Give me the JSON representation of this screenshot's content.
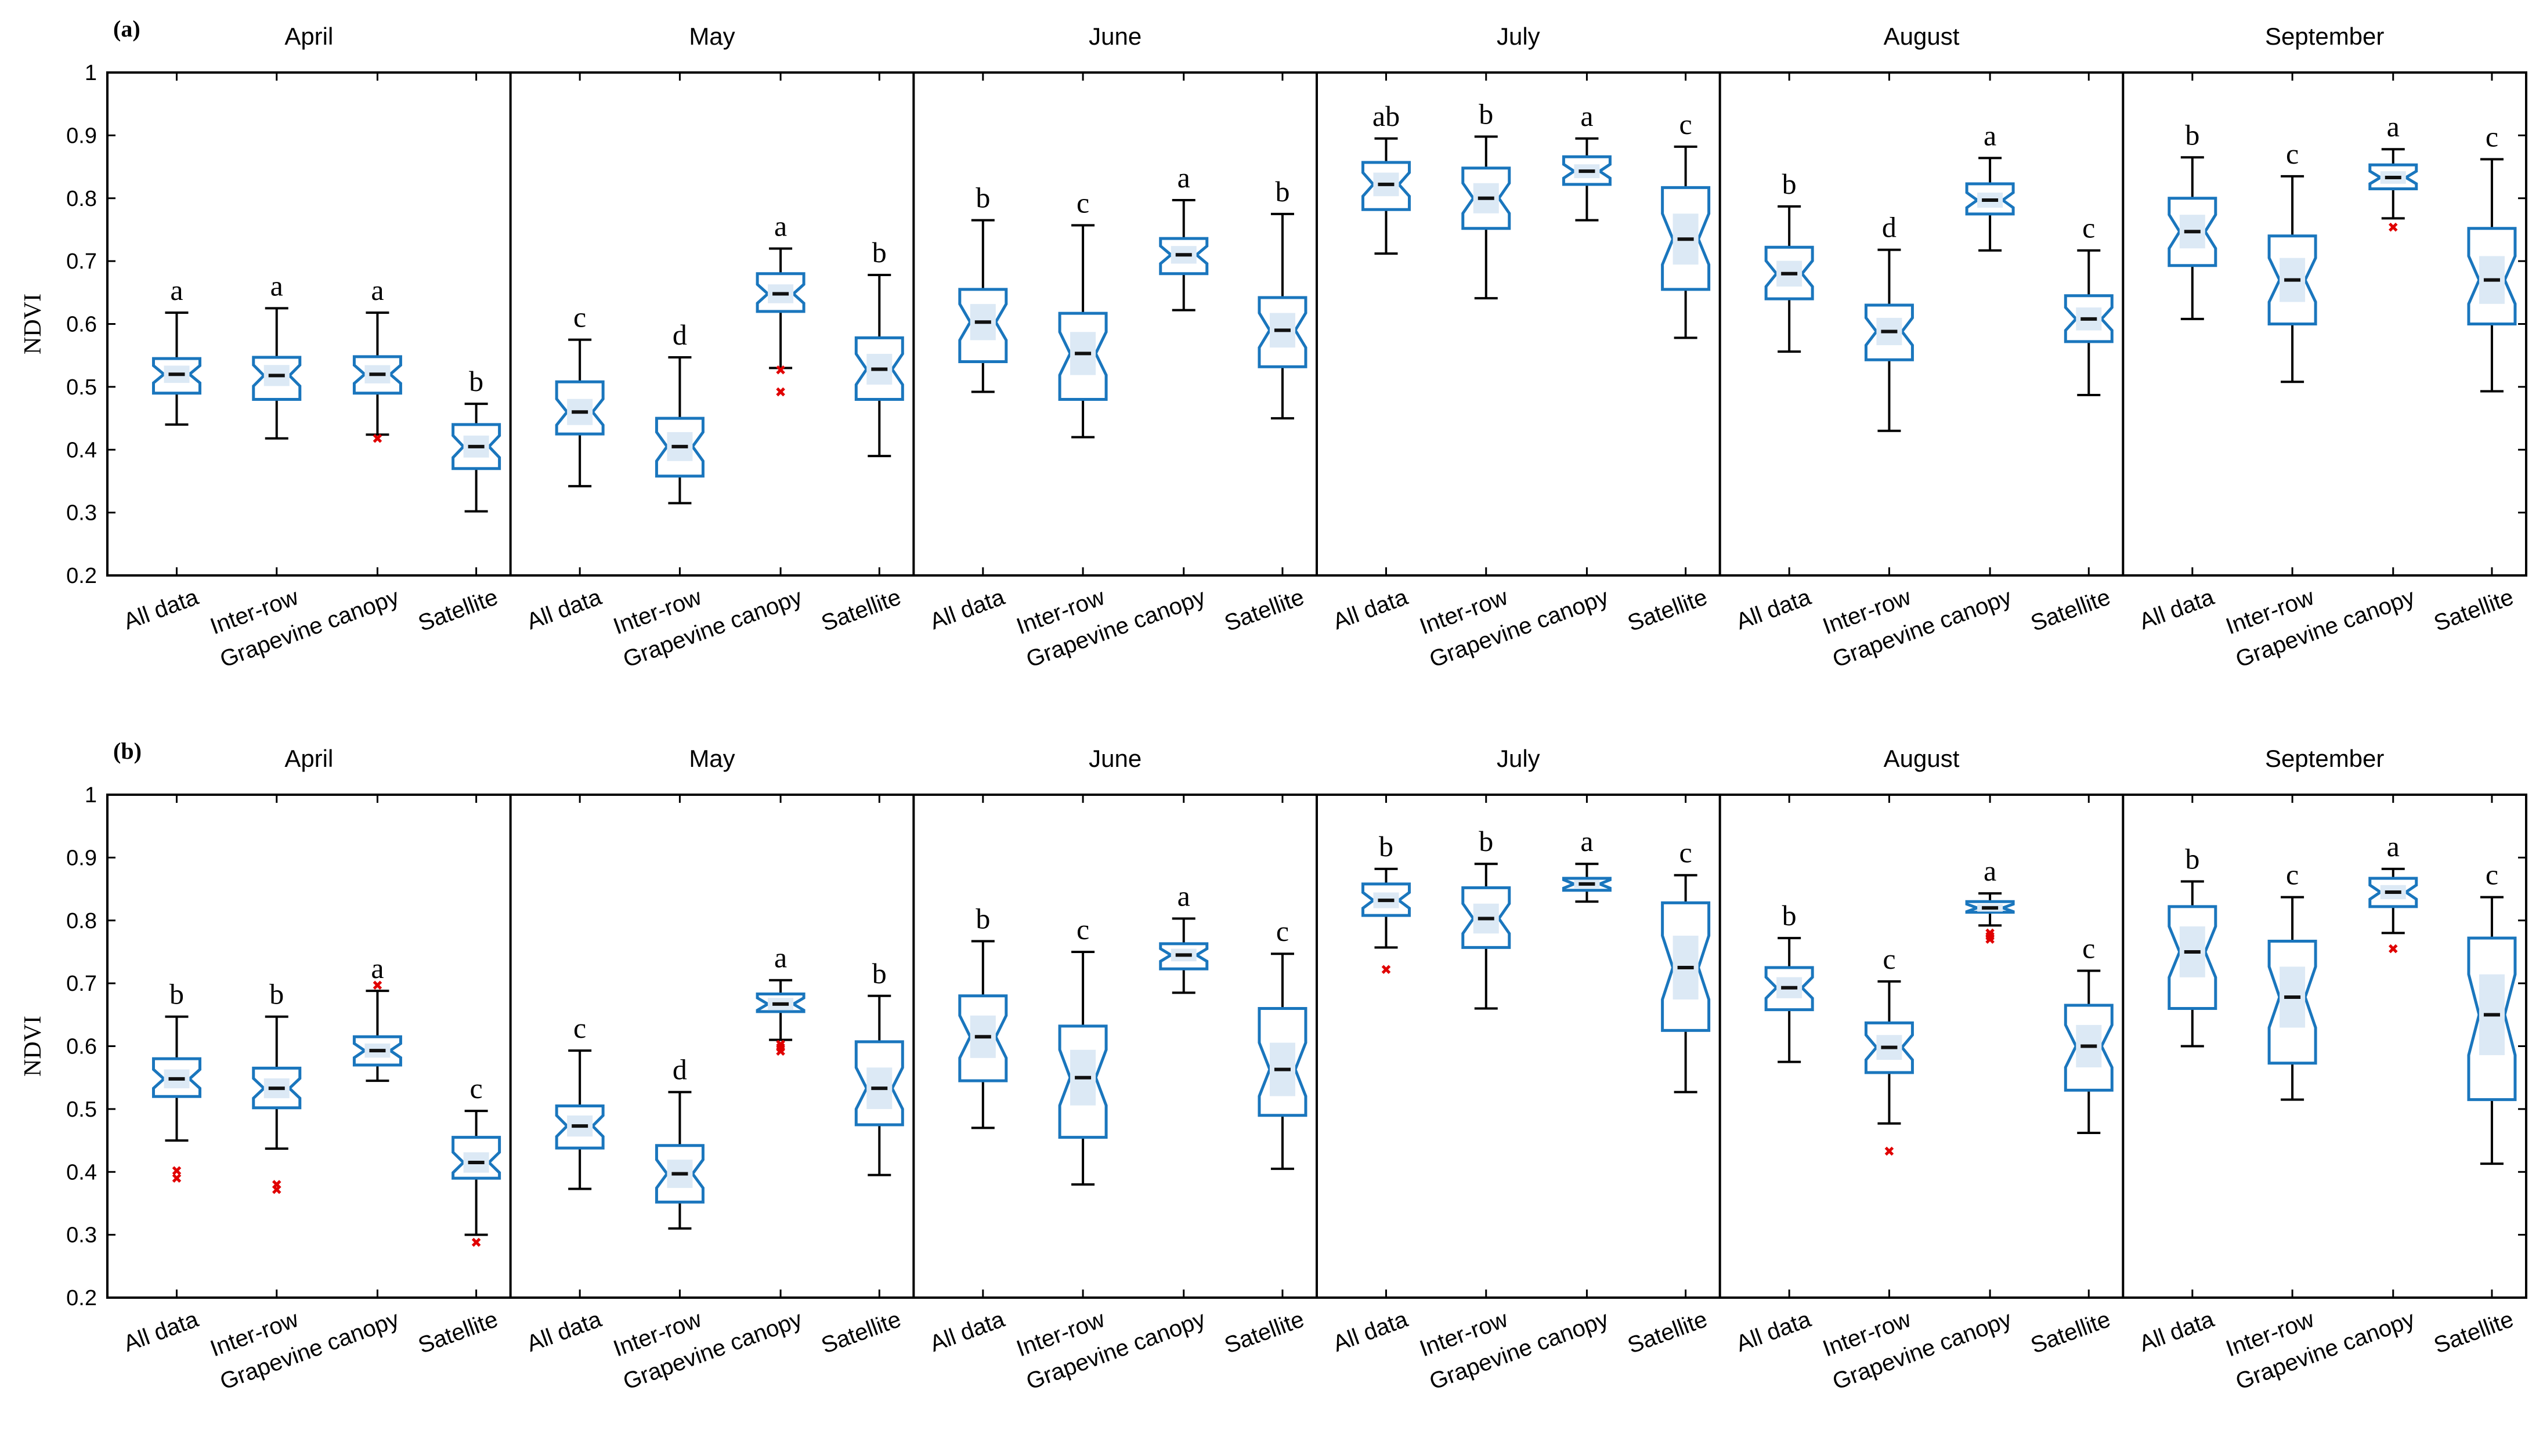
{
  "chart_data": [
    {
      "type": "boxplot",
      "panel_label": "(a)",
      "ylabel": "NDVI",
      "ylim": [
        0.2,
        1.0
      ],
      "yticks": [
        0.2,
        0.3,
        0.4,
        0.5,
        0.6,
        0.7,
        0.8,
        0.9,
        1
      ],
      "ytick_labels": [
        "0.2",
        "0.3",
        "0.4",
        "0.5",
        "0.6",
        "0.7",
        "0.8",
        "0.9",
        "1"
      ],
      "categories": [
        "All data",
        "Inter-row",
        "Grapevine canopy",
        "Satellite"
      ],
      "months": [
        {
          "name": "April",
          "boxes": [
            {
              "category": "All data",
              "min": 0.44,
              "q1": 0.49,
              "median": 0.52,
              "q3": 0.545,
              "max": 0.618,
              "outliers": [],
              "letter": "a"
            },
            {
              "category": "Inter-row",
              "min": 0.418,
              "q1": 0.48,
              "median": 0.518,
              "q3": 0.547,
              "max": 0.625,
              "outliers": [],
              "letter": "a"
            },
            {
              "category": "Grapevine canopy",
              "min": 0.424,
              "q1": 0.49,
              "median": 0.52,
              "q3": 0.548,
              "max": 0.618,
              "outliers": [
                0.418
              ],
              "letter": "a"
            },
            {
              "category": "Satellite",
              "min": 0.302,
              "q1": 0.37,
              "median": 0.405,
              "q3": 0.44,
              "max": 0.473,
              "outliers": [],
              "letter": "b"
            }
          ]
        },
        {
          "name": "May",
          "boxes": [
            {
              "category": "All data",
              "min": 0.342,
              "q1": 0.425,
              "median": 0.46,
              "q3": 0.508,
              "max": 0.575,
              "outliers": [],
              "letter": "c"
            },
            {
              "category": "Inter-row",
              "min": 0.315,
              "q1": 0.358,
              "median": 0.405,
              "q3": 0.45,
              "max": 0.547,
              "outliers": [],
              "letter": "d"
            },
            {
              "category": "Grapevine canopy",
              "min": 0.53,
              "q1": 0.62,
              "median": 0.648,
              "q3": 0.68,
              "max": 0.72,
              "outliers": [
                0.527,
                0.492
              ],
              "letter": "a"
            },
            {
              "category": "Satellite",
              "min": 0.39,
              "q1": 0.48,
              "median": 0.528,
              "q3": 0.578,
              "max": 0.678,
              "outliers": [],
              "letter": "b"
            }
          ]
        },
        {
          "name": "June",
          "boxes": [
            {
              "category": "All data",
              "min": 0.492,
              "q1": 0.54,
              "median": 0.603,
              "q3": 0.655,
              "max": 0.765,
              "outliers": [],
              "letter": "b"
            },
            {
              "category": "Inter-row",
              "min": 0.42,
              "q1": 0.48,
              "median": 0.553,
              "q3": 0.617,
              "max": 0.757,
              "outliers": [],
              "letter": "c"
            },
            {
              "category": "Grapevine canopy",
              "min": 0.622,
              "q1": 0.68,
              "median": 0.71,
              "q3": 0.736,
              "max": 0.797,
              "outliers": [],
              "letter": "a"
            },
            {
              "category": "Satellite",
              "min": 0.45,
              "q1": 0.532,
              "median": 0.59,
              "q3": 0.642,
              "max": 0.775,
              "outliers": [],
              "letter": "b"
            }
          ]
        },
        {
          "name": "July",
          "boxes": [
            {
              "category": "All data",
              "min": 0.712,
              "q1": 0.782,
              "median": 0.822,
              "q3": 0.857,
              "max": 0.895,
              "outliers": [],
              "letter": "ab"
            },
            {
              "category": "Inter-row",
              "min": 0.641,
              "q1": 0.752,
              "median": 0.8,
              "q3": 0.848,
              "max": 0.898,
              "outliers": [],
              "letter": "b"
            },
            {
              "category": "Grapevine canopy",
              "min": 0.765,
              "q1": 0.822,
              "median": 0.843,
              "q3": 0.866,
              "max": 0.895,
              "outliers": [],
              "letter": "a"
            },
            {
              "category": "Satellite",
              "min": 0.578,
              "q1": 0.655,
              "median": 0.735,
              "q3": 0.817,
              "max": 0.882,
              "outliers": [],
              "letter": "c"
            }
          ]
        },
        {
          "name": "August",
          "boxes": [
            {
              "category": "All data",
              "min": 0.556,
              "q1": 0.64,
              "median": 0.68,
              "q3": 0.722,
              "max": 0.787,
              "outliers": [],
              "letter": "b"
            },
            {
              "category": "Inter-row",
              "min": 0.43,
              "q1": 0.543,
              "median": 0.588,
              "q3": 0.63,
              "max": 0.718,
              "outliers": [],
              "letter": "d"
            },
            {
              "category": "Grapevine canopy",
              "min": 0.717,
              "q1": 0.775,
              "median": 0.797,
              "q3": 0.823,
              "max": 0.864,
              "outliers": [],
              "letter": "a"
            },
            {
              "category": "Satellite",
              "min": 0.487,
              "q1": 0.572,
              "median": 0.608,
              "q3": 0.645,
              "max": 0.717,
              "outliers": [],
              "letter": "c"
            }
          ]
        },
        {
          "name": "September",
          "boxes": [
            {
              "category": "All data",
              "min": 0.608,
              "q1": 0.693,
              "median": 0.747,
              "q3": 0.8,
              "max": 0.865,
              "outliers": [],
              "letter": "b"
            },
            {
              "category": "Inter-row",
              "min": 0.508,
              "q1": 0.6,
              "median": 0.67,
              "q3": 0.74,
              "max": 0.835,
              "outliers": [],
              "letter": "c"
            },
            {
              "category": "Grapevine canopy",
              "min": 0.768,
              "q1": 0.815,
              "median": 0.833,
              "q3": 0.853,
              "max": 0.878,
              "outliers": [
                0.754
              ],
              "letter": "a"
            },
            {
              "category": "Satellite",
              "min": 0.493,
              "q1": 0.6,
              "median": 0.67,
              "q3": 0.752,
              "max": 0.862,
              "outliers": [],
              "letter": "c"
            }
          ]
        }
      ]
    },
    {
      "type": "boxplot",
      "panel_label": "(b)",
      "ylabel": "NDVI",
      "ylim": [
        0.2,
        1.0
      ],
      "yticks": [
        0.2,
        0.3,
        0.4,
        0.5,
        0.6,
        0.7,
        0.8,
        0.9,
        1
      ],
      "ytick_labels": [
        "0.2",
        "0.3",
        "0.4",
        "0.5",
        "0.6",
        "0.7",
        "0.8",
        "0.9",
        "1"
      ],
      "categories": [
        "All data",
        "Inter-row",
        "Grapevine canopy",
        "Satellite"
      ],
      "months": [
        {
          "name": "April",
          "boxes": [
            {
              "category": "All data",
              "min": 0.45,
              "q1": 0.52,
              "median": 0.548,
              "q3": 0.58,
              "max": 0.647,
              "outliers": [
                0.402,
                0.39
              ],
              "letter": "b"
            },
            {
              "category": "Inter-row",
              "min": 0.437,
              "q1": 0.502,
              "median": 0.533,
              "q3": 0.565,
              "max": 0.647,
              "outliers": [
                0.38,
                0.372
              ],
              "letter": "b"
            },
            {
              "category": "Grapevine canopy",
              "min": 0.545,
              "q1": 0.57,
              "median": 0.593,
              "q3": 0.615,
              "max": 0.688,
              "outliers": [
                0.697
              ],
              "letter": "a"
            },
            {
              "category": "Satellite",
              "min": 0.3,
              "q1": 0.39,
              "median": 0.415,
              "q3": 0.455,
              "max": 0.497,
              "outliers": [
                0.288
              ],
              "letter": "c"
            }
          ]
        },
        {
          "name": "May",
          "boxes": [
            {
              "category": "All data",
              "min": 0.373,
              "q1": 0.438,
              "median": 0.473,
              "q3": 0.505,
              "max": 0.593,
              "outliers": [],
              "letter": "c"
            },
            {
              "category": "Inter-row",
              "min": 0.31,
              "q1": 0.352,
              "median": 0.397,
              "q3": 0.442,
              "max": 0.527,
              "outliers": [],
              "letter": "d"
            },
            {
              "category": "Grapevine canopy",
              "min": 0.61,
              "q1": 0.655,
              "median": 0.667,
              "q3": 0.683,
              "max": 0.705,
              "outliers": [
                0.603,
                0.598,
                0.592
              ],
              "letter": "a"
            },
            {
              "category": "Satellite",
              "min": 0.395,
              "q1": 0.475,
              "median": 0.533,
              "q3": 0.607,
              "max": 0.68,
              "outliers": [],
              "letter": "b"
            }
          ]
        },
        {
          "name": "June",
          "boxes": [
            {
              "category": "All data",
              "min": 0.47,
              "q1": 0.545,
              "median": 0.615,
              "q3": 0.68,
              "max": 0.767,
              "outliers": [],
              "letter": "b"
            },
            {
              "category": "Inter-row",
              "min": 0.38,
              "q1": 0.455,
              "median": 0.55,
              "q3": 0.632,
              "max": 0.75,
              "outliers": [],
              "letter": "c"
            },
            {
              "category": "Grapevine canopy",
              "min": 0.685,
              "q1": 0.723,
              "median": 0.745,
              "q3": 0.763,
              "max": 0.803,
              "outliers": [],
              "letter": "a"
            },
            {
              "category": "Satellite",
              "min": 0.405,
              "q1": 0.49,
              "median": 0.563,
              "q3": 0.66,
              "max": 0.747,
              "outliers": [],
              "letter": "c"
            }
          ]
        },
        {
          "name": "July",
          "boxes": [
            {
              "category": "All data",
              "min": 0.757,
              "q1": 0.808,
              "median": 0.832,
              "q3": 0.858,
              "max": 0.882,
              "outliers": [
                0.722
              ],
              "letter": "b"
            },
            {
              "category": "Inter-row",
              "min": 0.66,
              "q1": 0.757,
              "median": 0.803,
              "q3": 0.852,
              "max": 0.89,
              "outliers": [],
              "letter": "b"
            },
            {
              "category": "Grapevine canopy",
              "min": 0.83,
              "q1": 0.848,
              "median": 0.858,
              "q3": 0.867,
              "max": 0.89,
              "outliers": [],
              "letter": "a"
            },
            {
              "category": "Satellite",
              "min": 0.527,
              "q1": 0.625,
              "median": 0.725,
              "q3": 0.828,
              "max": 0.872,
              "outliers": [],
              "letter": "c"
            }
          ]
        },
        {
          "name": "August",
          "boxes": [
            {
              "category": "All data",
              "min": 0.575,
              "q1": 0.658,
              "median": 0.693,
              "q3": 0.725,
              "max": 0.772,
              "outliers": [],
              "letter": "b"
            },
            {
              "category": "Inter-row",
              "min": 0.477,
              "q1": 0.558,
              "median": 0.598,
              "q3": 0.637,
              "max": 0.703,
              "outliers": [
                0.433
              ],
              "letter": "c"
            },
            {
              "category": "Grapevine canopy",
              "min": 0.792,
              "q1": 0.813,
              "median": 0.82,
              "q3": 0.83,
              "max": 0.843,
              "outliers": [
                0.78,
                0.775,
                0.77
              ],
              "letter": "a"
            },
            {
              "category": "Satellite",
              "min": 0.462,
              "q1": 0.53,
              "median": 0.6,
              "q3": 0.665,
              "max": 0.72,
              "outliers": [],
              "letter": "c"
            }
          ]
        },
        {
          "name": "September",
          "boxes": [
            {
              "category": "All data",
              "min": 0.6,
              "q1": 0.66,
              "median": 0.75,
              "q3": 0.822,
              "max": 0.862,
              "outliers": [],
              "letter": "b"
            },
            {
              "category": "Inter-row",
              "min": 0.515,
              "q1": 0.573,
              "median": 0.678,
              "q3": 0.767,
              "max": 0.837,
              "outliers": [],
              "letter": "c"
            },
            {
              "category": "Grapevine canopy",
              "min": 0.78,
              "q1": 0.822,
              "median": 0.845,
              "q3": 0.867,
              "max": 0.882,
              "outliers": [
                0.755
              ],
              "letter": "a"
            },
            {
              "category": "Satellite",
              "min": 0.413,
              "q1": 0.515,
              "median": 0.65,
              "q3": 0.772,
              "max": 0.837,
              "outliers": [],
              "letter": "c"
            }
          ]
        }
      ]
    }
  ],
  "colors": {
    "box_edge": "#1a76bd",
    "iqr_band": "#dce9f5",
    "outlier": "#e00000",
    "axes": "#000000"
  }
}
